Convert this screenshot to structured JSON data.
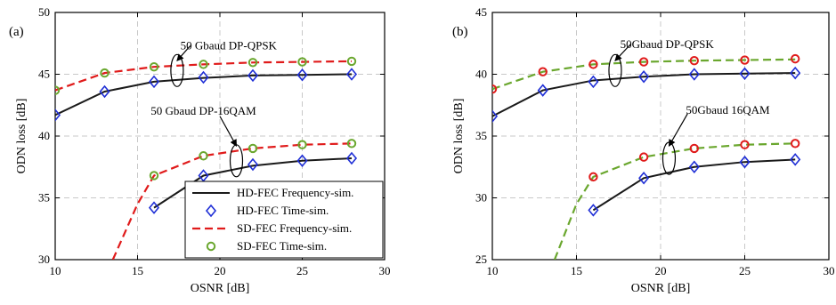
{
  "chart_data": [
    {
      "type": "line",
      "panel_label": "(a)",
      "xlabel": "OSNR [dB]",
      "ylabel": "ODN loss [dB]",
      "xlim": [
        10,
        30
      ],
      "ylim": [
        30,
        50
      ],
      "xticks": [
        10,
        15,
        20,
        25,
        30
      ],
      "yticks": [
        30,
        35,
        40,
        45,
        50
      ],
      "grid": true,
      "legend_position": "bottom-right",
      "colors": {
        "hd": "#1a1a1a",
        "hd_marker": "#1f2fd6",
        "sd": "#e01b1b",
        "sd_marker": "#6aa72e"
      },
      "annotations": [
        {
          "text": "50 Gbaud DP-QPSK",
          "ellipse_at": [
            17.4,
            45.3
          ],
          "arrow_from": [
            18.2,
            47.3
          ],
          "arrow_to": [
            17.4,
            46.1
          ],
          "text_at": [
            17.6,
            47.3
          ]
        },
        {
          "text": "50 Gbaud DP-16QAM",
          "ellipse_at": [
            21.0,
            38.0
          ],
          "arrow_from": [
            20.0,
            41.6
          ],
          "arrow_to": [
            21.0,
            39.2
          ],
          "text_at": [
            15.8,
            42.0
          ]
        }
      ],
      "series": [
        {
          "name": "HD-FEC Frequency-sim.",
          "group": "QPSK",
          "style": "hd-line",
          "x": [
            10,
            13,
            16,
            19,
            22,
            25,
            28
          ],
          "y": [
            41.7,
            43.6,
            44.4,
            44.7,
            44.9,
            44.95,
            45.0
          ]
        },
        {
          "name": "HD-FEC Time-sim.",
          "group": "QPSK",
          "style": "hd-marker",
          "x": [
            10,
            13,
            16,
            19,
            22,
            25,
            28
          ],
          "y": [
            41.7,
            43.6,
            44.4,
            44.75,
            44.9,
            44.95,
            45.0
          ]
        },
        {
          "name": "SD-FEC Frequency-sim.",
          "group": "QPSK",
          "style": "sd-line",
          "x": [
            10,
            13,
            16,
            19,
            22,
            25,
            28
          ],
          "y": [
            43.7,
            45.1,
            45.6,
            45.8,
            45.95,
            46.0,
            46.05
          ]
        },
        {
          "name": "SD-FEC Time-sim.",
          "group": "QPSK",
          "style": "sd-marker",
          "x": [
            10,
            13,
            16,
            19,
            22,
            25,
            28
          ],
          "y": [
            43.7,
            45.1,
            45.6,
            45.8,
            45.95,
            46.0,
            46.05
          ]
        },
        {
          "name": "HD-FEC Frequency-sim.",
          "group": "16QAM",
          "style": "hd-line",
          "x": [
            16,
            19,
            22,
            25,
            28
          ],
          "y": [
            34.2,
            36.8,
            37.6,
            38.0,
            38.2
          ]
        },
        {
          "name": "HD-FEC Time-sim.",
          "group": "16QAM",
          "style": "hd-marker",
          "x": [
            16,
            19,
            22,
            25,
            28
          ],
          "y": [
            34.2,
            36.8,
            37.7,
            38.0,
            38.2
          ]
        },
        {
          "name": "SD-FEC Frequency-sim.",
          "group": "16QAM",
          "style": "sd-line",
          "x": [
            13.5,
            15.0,
            16,
            19,
            22,
            25,
            28
          ],
          "y": [
            30.0,
            34.5,
            36.8,
            38.4,
            39.0,
            39.3,
            39.4
          ]
        },
        {
          "name": "SD-FEC Time-sim.",
          "group": "16QAM",
          "style": "sd-marker",
          "x": [
            16,
            19,
            22,
            25,
            28
          ],
          "y": [
            36.8,
            38.4,
            39.0,
            39.3,
            39.4
          ]
        }
      ],
      "legend": [
        {
          "label": "HD-FEC Frequency-sim.",
          "style": "hd-line"
        },
        {
          "label": "HD-FEC Time-sim.",
          "style": "hd-marker"
        },
        {
          "label": "SD-FEC Frequency-sim.",
          "style": "sd-line"
        },
        {
          "label": "SD-FEC Time-sim.",
          "style": "sd-marker"
        }
      ]
    },
    {
      "type": "line",
      "panel_label": "(b)",
      "xlabel": "OSNR [dB]",
      "ylabel": "ODN loss [dB]",
      "xlim": [
        10,
        30
      ],
      "ylim": [
        25,
        45
      ],
      "xticks": [
        10,
        15,
        20,
        25,
        30
      ],
      "yticks": [
        25,
        30,
        35,
        40,
        45
      ],
      "grid": true,
      "colors": {
        "hd": "#1a1a1a",
        "hd_marker": "#1f2fd6",
        "sd": "#6aa72e",
        "sd_marker": "#e01b1b"
      },
      "annotations": [
        {
          "text": "50Gbaud DP-QPSK",
          "ellipse_at": [
            17.3,
            40.3
          ],
          "arrow_from": [
            18.2,
            42.4
          ],
          "arrow_to": [
            17.3,
            41.1
          ],
          "text_at": [
            17.6,
            42.4
          ]
        },
        {
          "text": "50Gbaud 16QAM",
          "ellipse_at": [
            20.5,
            33.2
          ],
          "arrow_from": [
            21.6,
            36.8
          ],
          "arrow_to": [
            20.5,
            34.2
          ],
          "text_at": [
            21.5,
            37.1
          ]
        }
      ],
      "series": [
        {
          "name": "HD-FEC Frequency-sim.",
          "group": "QPSK",
          "style": "hd-line",
          "x": [
            10,
            13,
            16,
            19,
            22,
            25,
            28
          ],
          "y": [
            36.6,
            38.7,
            39.5,
            39.8,
            40.0,
            40.05,
            40.1
          ]
        },
        {
          "name": "HD-FEC Time-sim.",
          "group": "QPSK",
          "style": "hd-marker",
          "x": [
            10,
            13,
            16,
            19,
            22,
            25,
            28
          ],
          "y": [
            36.6,
            38.7,
            39.4,
            39.8,
            40.0,
            40.05,
            40.1
          ]
        },
        {
          "name": "SD-FEC Frequency-sim.",
          "group": "QPSK",
          "style": "sd-line",
          "x": [
            10,
            13,
            16,
            19,
            22,
            25,
            28
          ],
          "y": [
            38.8,
            40.2,
            40.8,
            41.0,
            41.1,
            41.15,
            41.2
          ]
        },
        {
          "name": "SD-FEC Time-sim.",
          "group": "QPSK",
          "style": "sd-marker",
          "x": [
            10,
            13,
            16,
            19,
            22,
            25,
            28
          ],
          "y": [
            38.8,
            40.2,
            40.8,
            41.0,
            41.1,
            41.15,
            41.25
          ]
        },
        {
          "name": "HD-FEC Frequency-sim.",
          "group": "16QAM",
          "style": "hd-line",
          "x": [
            16,
            19,
            22,
            25,
            28
          ],
          "y": [
            29.0,
            31.6,
            32.5,
            32.9,
            33.1
          ]
        },
        {
          "name": "HD-FEC Time-sim.",
          "group": "16QAM",
          "style": "hd-marker",
          "x": [
            16,
            19,
            22,
            25,
            28
          ],
          "y": [
            29.0,
            31.6,
            32.5,
            32.9,
            33.1
          ]
        },
        {
          "name": "SD-FEC Frequency-sim.",
          "group": "16QAM",
          "style": "sd-line",
          "x": [
            13.7,
            15.0,
            16,
            19,
            22,
            25,
            28
          ],
          "y": [
            25.0,
            29.5,
            31.7,
            33.3,
            34.0,
            34.3,
            34.4
          ]
        },
        {
          "name": "SD-FEC Time-sim.",
          "group": "16QAM",
          "style": "sd-marker",
          "x": [
            16,
            19,
            22,
            25,
            28
          ],
          "y": [
            31.7,
            33.3,
            34.0,
            34.3,
            34.4
          ]
        }
      ]
    }
  ]
}
